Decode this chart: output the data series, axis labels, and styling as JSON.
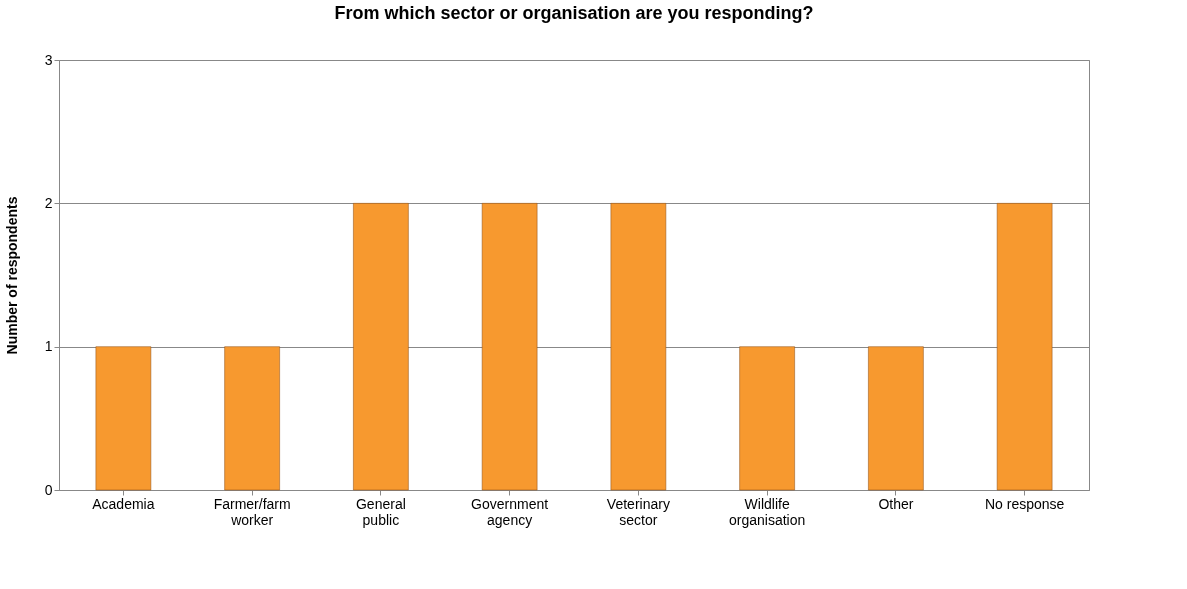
{
  "chart_data": {
    "type": "bar",
    "title": "From which sector or organisation are you responding?",
    "ylabel": "Number of respondents",
    "categories": [
      "Academia",
      "Farmer/farm worker",
      "General public",
      "Government agency",
      "Veterinary sector",
      "Wildlife organisation",
      "Other",
      "No response"
    ],
    "values": [
      1,
      1,
      2,
      2,
      2,
      1,
      1,
      2
    ],
    "color": "#f7992f",
    "ylim": [
      0,
      3
    ],
    "yticks": [
      0,
      1,
      2,
      3
    ],
    "grid": "y"
  }
}
